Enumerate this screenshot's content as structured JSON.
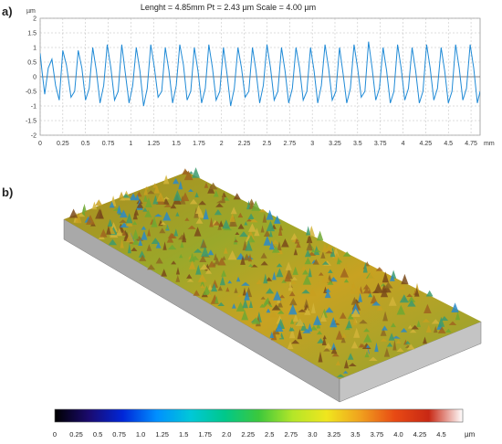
{
  "panel_a": {
    "label": "a)",
    "header": "Lenght = 4.85mm   Pt = 2.43 µm Scale =  4.00 µm",
    "y_unit": "µm",
    "x_unit": "mm"
  },
  "panel_b": {
    "label": "b)"
  },
  "colorbar": {
    "unit": "µm",
    "ticks": [
      "0",
      "0.25",
      "0.5",
      "0.75",
      "1.0",
      "1.25",
      "1.5",
      "1.75",
      "2.0",
      "2.25",
      "2.5",
      "2.75",
      "3.0",
      "3.25",
      "3.5",
      "3.75",
      "4.0",
      "4.25",
      "4.5"
    ],
    "range": [
      0,
      4.75
    ],
    "colors": [
      "#000000",
      "#1a0a6e",
      "#0026d8",
      "#0090ff",
      "#00c8d8",
      "#00c88a",
      "#3cc83c",
      "#b4e628",
      "#f0e61e",
      "#f0a01e",
      "#e84a14",
      "#c82814",
      "#ffffff"
    ]
  },
  "chart_data": [
    {
      "type": "line",
      "title": "Lenght = 4.85mm   Pt = 2.43 µm Scale =  4.00 µm",
      "xlabel": "mm",
      "ylabel": "µm",
      "xlim": [
        0,
        4.85
      ],
      "ylim": [
        -2,
        2
      ],
      "xticks": [
        "0",
        "0.25",
        "0.5",
        "0.75",
        "1",
        "1.25",
        "1.5",
        "1.75",
        "2",
        "2.25",
        "2.5",
        "2.75",
        "3",
        "3.25",
        "3.5",
        "3.75",
        "4",
        "4.25",
        "4.5",
        "4.75"
      ],
      "yticks": [
        "2",
        "1.5",
        "1",
        "0.5",
        "0",
        "-0.5",
        "-1",
        "-1.5",
        "-2"
      ],
      "grid": true,
      "line_color": "#1f8ad6",
      "series": [
        {
          "x": [
            0,
            0.02,
            0.05,
            0.09,
            0.13,
            0.17,
            0.21,
            0.25,
            0.29,
            0.34,
            0.38,
            0.42,
            0.46,
            0.5,
            0.54,
            0.58,
            0.62,
            0.66,
            0.7,
            0.74,
            0.78,
            0.82,
            0.86,
            0.9,
            0.94,
            0.98,
            1.02,
            1.06,
            1.1,
            1.14,
            1.18,
            1.22,
            1.26,
            1.3,
            1.34,
            1.38,
            1.42,
            1.46,
            1.5,
            1.54,
            1.58,
            1.62,
            1.66,
            1.7,
            1.74,
            1.78,
            1.82,
            1.86,
            1.9,
            1.94,
            1.98,
            2.02,
            2.06,
            2.1,
            2.14,
            2.18,
            2.22,
            2.26,
            2.3,
            2.34,
            2.38,
            2.42,
            2.46,
            2.5,
            2.54,
            2.58,
            2.62,
            2.66,
            2.7,
            2.74,
            2.78,
            2.82,
            2.86,
            2.9,
            2.94,
            2.98,
            3.02,
            3.06,
            3.1,
            3.14,
            3.18,
            3.22,
            3.26,
            3.3,
            3.34,
            3.38,
            3.42,
            3.46,
            3.5,
            3.54,
            3.58,
            3.62,
            3.66,
            3.7,
            3.74,
            3.78,
            3.82,
            3.86,
            3.9,
            3.94,
            3.98,
            4.02,
            4.06,
            4.1,
            4.14,
            4.18,
            4.22,
            4.26,
            4.3,
            4.34,
            4.38,
            4.42,
            4.46,
            4.5,
            4.54,
            4.58,
            4.62,
            4.66,
            4.7,
            4.74,
            4.78,
            4.82,
            4.85
          ],
          "y": [
            0.8,
            0.2,
            -0.6,
            0.3,
            0.6,
            -0.3,
            -0.8,
            0.9,
            0.4,
            -0.7,
            -0.5,
            0.9,
            0.3,
            -0.8,
            -0.4,
            1.0,
            0.2,
            -0.9,
            -0.3,
            1.1,
            0.3,
            -0.8,
            -0.5,
            1.1,
            0.1,
            -0.9,
            -0.3,
            1.0,
            0.2,
            -1.0,
            -0.4,
            1.1,
            0.3,
            -0.7,
            -0.5,
            1.0,
            0.2,
            -0.9,
            -0.3,
            1.1,
            0.4,
            -0.8,
            -0.5,
            1.0,
            0.2,
            -0.9,
            -0.4,
            1.1,
            0.3,
            -0.8,
            -0.5,
            1.0,
            0.1,
            -1.0,
            -0.4,
            1.0,
            0.3,
            -0.7,
            -0.5,
            1.0,
            0.2,
            -0.9,
            -0.3,
            1.1,
            0.3,
            -0.8,
            -0.5,
            1.0,
            0.2,
            -0.9,
            -0.4,
            1.0,
            0.3,
            -0.8,
            -0.5,
            1.0,
            0.2,
            -0.9,
            -0.3,
            1.1,
            0.3,
            -0.8,
            -0.5,
            1.0,
            0.1,
            -0.9,
            -0.4,
            1.1,
            0.3,
            -0.7,
            -0.5,
            1.2,
            0.3,
            -0.8,
            -0.4,
            1.0,
            0.2,
            -0.9,
            -0.5,
            1.1,
            0.3,
            -0.8,
            -0.4,
            1.0,
            0.2,
            -0.9,
            -0.5,
            1.1,
            0.3,
            -0.8,
            -0.4,
            1.0,
            0.2,
            -0.9,
            -0.5,
            1.1,
            0.3,
            -0.8,
            -0.4,
            1.1,
            0.3,
            -0.9,
            -0.5
          ]
        }
      ]
    }
  ]
}
